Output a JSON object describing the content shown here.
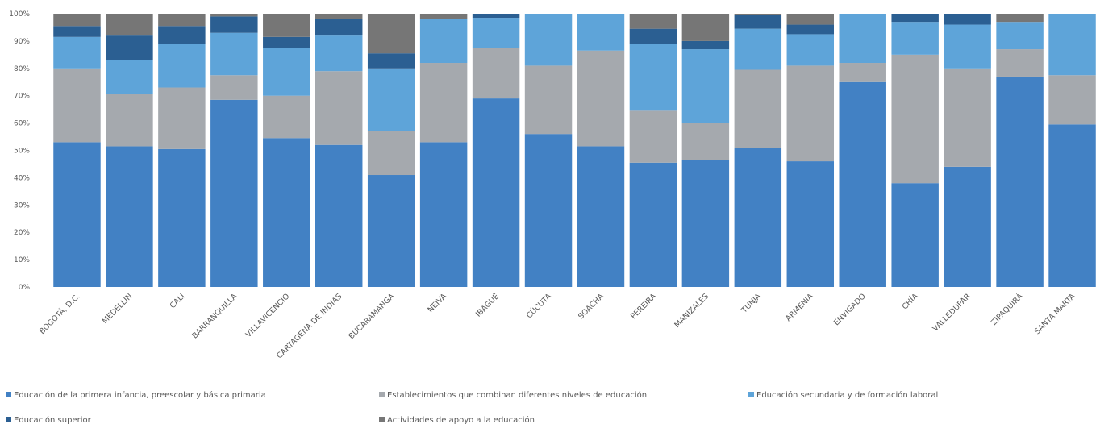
{
  "chart_data": {
    "type": "bar",
    "stacked": true,
    "percent_stacked": true,
    "title": "",
    "xlabel": "",
    "ylabel": "",
    "ylim": [
      0,
      100
    ],
    "y_ticks": [
      "0%",
      "10%",
      "20%",
      "30%",
      "40%",
      "50%",
      "60%",
      "70%",
      "80%",
      "90%",
      "100%"
    ],
    "grid": false,
    "legend_position": "bottom",
    "categories": [
      "BOGOTÁ, D.C.",
      "MEDELLÍN",
      "CALI",
      "BARRANQUILLA",
      "VILLAVICENCIO",
      "CARTAGENA DE INDIAS",
      "BUCARAMANGA",
      "NEIVA",
      "IBAGUÉ",
      "CÚCUTA",
      "SOACHA",
      "PEREIRA",
      "MANIZALES",
      "TUNJA",
      "ARMENIA",
      "ENVIGADO",
      "CHÍA",
      "VALLEDUPAR",
      "ZIPAQUIRÁ",
      "SANTA MARTA"
    ],
    "series": [
      {
        "name": "Educación de la primera infancia, preescolar y básica primaria",
        "color": "#4281c4",
        "values": [
          53,
          51.5,
          50.5,
          68.5,
          54.5,
          52,
          41,
          53,
          69,
          56,
          51.5,
          45.5,
          46.5,
          51,
          46,
          75,
          38,
          44,
          77,
          59.5
        ]
      },
      {
        "name": "Establecimientos que combinan diferentes niveles de educación",
        "color": "#a5a9ae",
        "values": [
          27,
          19,
          22.5,
          9,
          15.5,
          27,
          16,
          29,
          18.5,
          25,
          35,
          19,
          13.5,
          28.5,
          35,
          7,
          47,
          36,
          10,
          18
        ]
      },
      {
        "name": "Educación secundaria y de formación laboral",
        "color": "#5ea4d9",
        "values": [
          11.5,
          12.5,
          16,
          15.5,
          17.5,
          13,
          23,
          16,
          11,
          19,
          13.5,
          24.5,
          27,
          15,
          11.5,
          18,
          12,
          16,
          10,
          22.5
        ]
      },
      {
        "name": "Educación superior",
        "color": "#2b5f92",
        "values": [
          4,
          9,
          6.5,
          6,
          4,
          6,
          5.5,
          0,
          1.5,
          0,
          0,
          5.5,
          3,
          5,
          3.5,
          0,
          3,
          4,
          0,
          0
        ]
      },
      {
        "name": "Actividades de apoyo a la educación",
        "color": "#767676",
        "values": [
          4.5,
          8,
          4.5,
          1,
          8.5,
          2,
          14.5,
          2,
          0,
          0,
          0,
          5.5,
          10,
          0.5,
          4,
          0,
          0,
          0,
          3,
          0
        ]
      }
    ]
  }
}
